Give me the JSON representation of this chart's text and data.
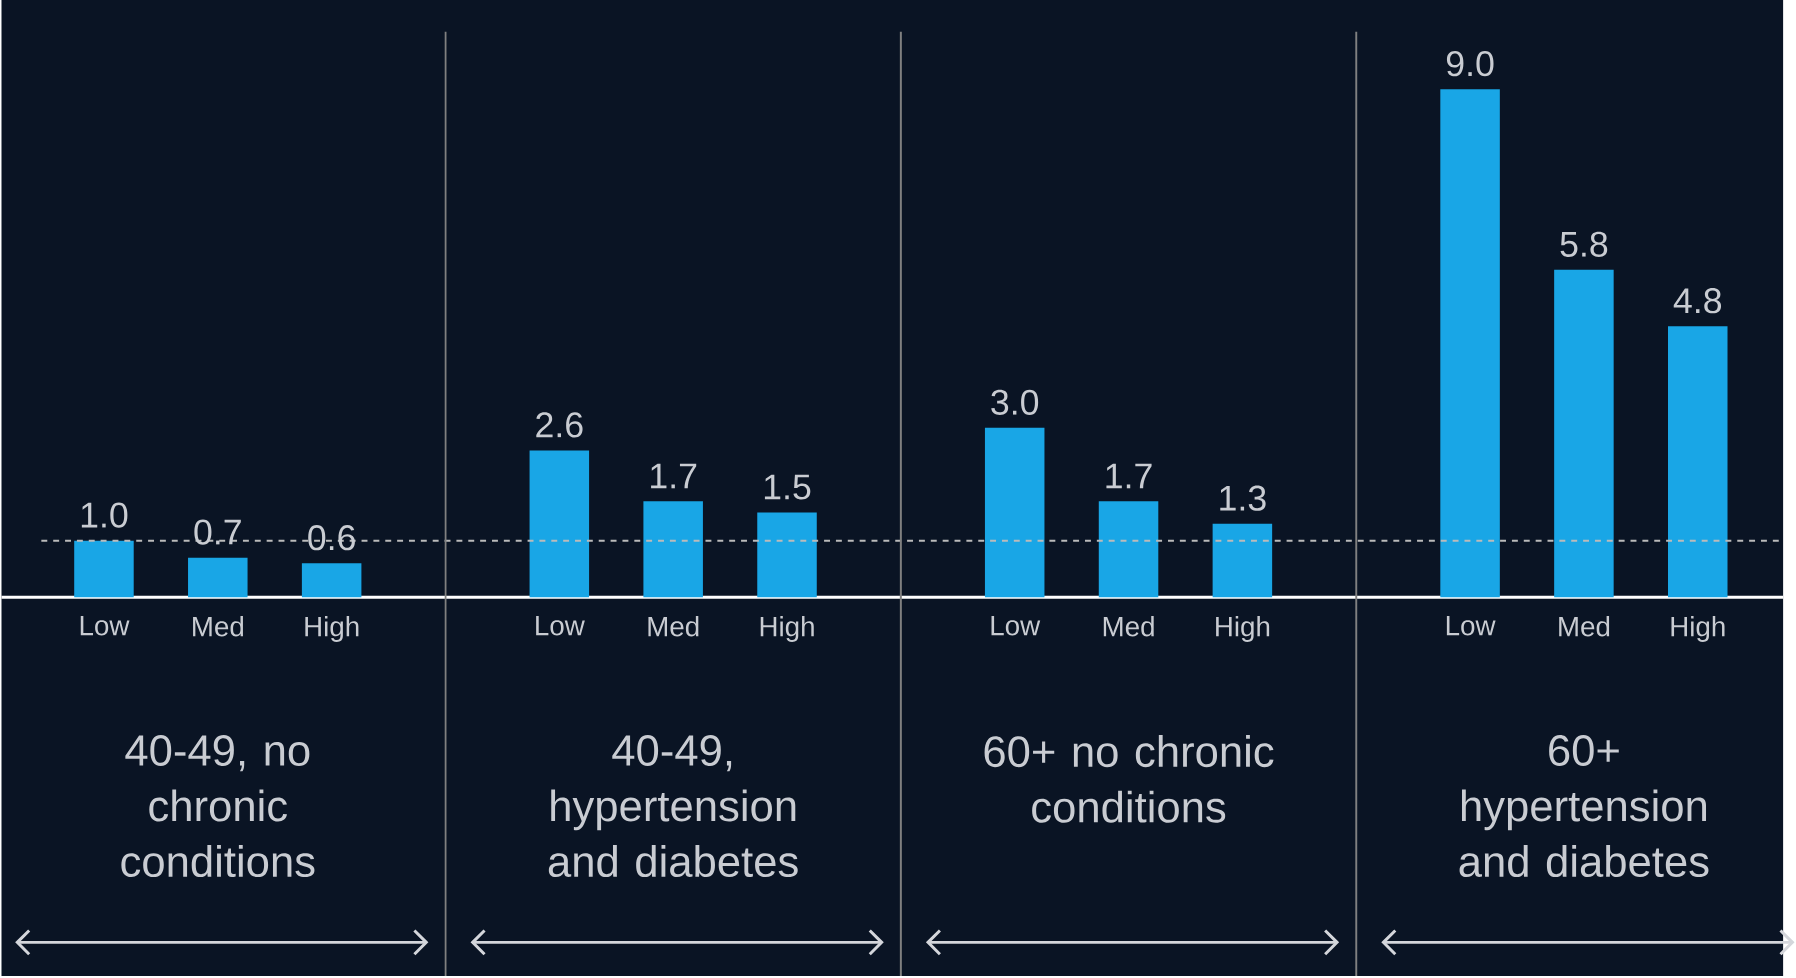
{
  "chart_data": {
    "type": "bar",
    "categories": [
      "Low",
      "Med",
      "High",
      "Low",
      "Med",
      "High",
      "Low",
      "Med",
      "High",
      "Low",
      "Med",
      "High"
    ],
    "values": [
      1.0,
      0.7,
      0.6,
      2.6,
      1.7,
      1.5,
      3.0,
      1.7,
      1.3,
      9.0,
      5.8,
      4.8
    ],
    "value_labels": [
      "1.0",
      "0.7",
      "0.6",
      "2.6",
      "1.7",
      "1.5",
      "3.0",
      "1.7",
      "1.3",
      "9.0",
      "5.8",
      "4.8"
    ],
    "color": "#19a6e6",
    "ref_lines": [
      {
        "axis": "y",
        "value": 1.0,
        "color": "#bbbbbb",
        "line_style": "dashed"
      }
    ],
    "annotations": [
      "40-49, no chronic conditions",
      "40-49, hypertension and diabetes",
      "60+ no chronic conditions",
      "60+ hypertension and diabetes"
    ]
  }
}
